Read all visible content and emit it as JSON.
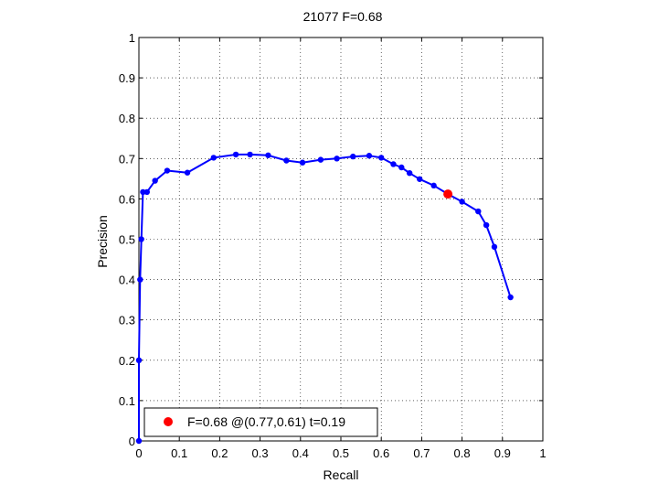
{
  "chart_data": {
    "type": "line",
    "title": "21077 F=0.68",
    "xlabel": "Recall",
    "ylabel": "Precision",
    "xlim": [
      0,
      1
    ],
    "ylim": [
      0,
      1
    ],
    "xticks": [
      "0",
      "0.1",
      "0.2",
      "0.3",
      "0.4",
      "0.5",
      "0.6",
      "0.7",
      "0.8",
      "0.9",
      "1"
    ],
    "yticks": [
      "0",
      "0.1",
      "0.2",
      "0.3",
      "0.4",
      "0.5",
      "0.6",
      "0.7",
      "0.8",
      "0.9",
      "1"
    ],
    "grid": true,
    "legend_position": "bottom-left",
    "series": [
      {
        "color": "#0000ff",
        "x": [
          0.0,
          0.0,
          0.003,
          0.006,
          0.01,
          0.02,
          0.04,
          0.07,
          0.12,
          0.185,
          0.24,
          0.275,
          0.32,
          0.365,
          0.405,
          0.45,
          0.49,
          0.53,
          0.57,
          0.6,
          0.63,
          0.65,
          0.67,
          0.695,
          0.73,
          0.765,
          0.8,
          0.84,
          0.86,
          0.88,
          0.92
        ],
        "y": [
          0.0,
          0.2,
          0.4,
          0.5,
          0.617,
          0.617,
          0.645,
          0.67,
          0.665,
          0.702,
          0.71,
          0.71,
          0.708,
          0.695,
          0.69,
          0.697,
          0.7,
          0.705,
          0.707,
          0.702,
          0.686,
          0.678,
          0.664,
          0.649,
          0.633,
          0.612,
          0.593,
          0.569,
          0.535,
          0.481,
          0.356
        ]
      }
    ],
    "highlight": {
      "x": 0.765,
      "y": 0.612,
      "color": "#ff0000",
      "label": "F=0.68 @(0.77,0.61) t=0.19"
    }
  }
}
